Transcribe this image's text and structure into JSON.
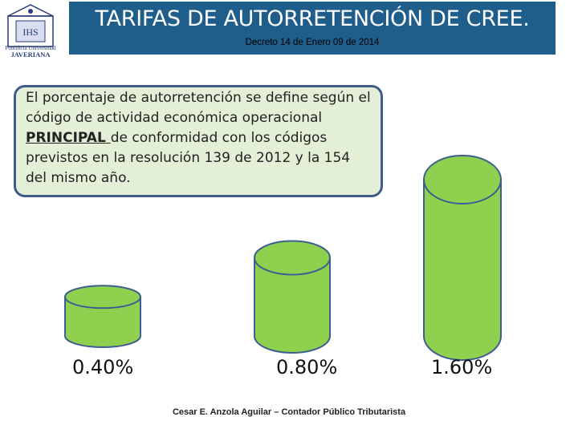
{
  "header": {
    "title": "TARIFAS DE AUTORRETENCIÓN DE CREE.",
    "subtitle": "Decreto 14 de Enero 09 de 2014",
    "colors": {
      "banner": "#1f5d8a"
    }
  },
  "logo": {
    "line1": "Pontificia Universidad",
    "line2": "JAVERIANA",
    "icon": "university-crest-icon"
  },
  "body": {
    "text_before": "El porcentaje de autorretención se define según el código de actividad económica operacional ",
    "text_emphasis": "PRINCIPAL ",
    "text_after": "de conformidad con los códigos previstos en la resolución 139 de 2012 y la 154 del mismo año."
  },
  "rates": [
    {
      "label": "0.40%",
      "value": 0.4
    },
    {
      "label": "0.80%",
      "value": 0.8
    },
    {
      "label": "1.60%",
      "value": 1.6
    }
  ],
  "footer": {
    "author": "Cesar E. Anzola Aguilar – Contador Público Tributarista"
  },
  "colors": {
    "cylinder_fill": "#8fd14f",
    "cylinder_stroke": "#3d5f8f",
    "textbox_fill": "#e4efd7"
  }
}
